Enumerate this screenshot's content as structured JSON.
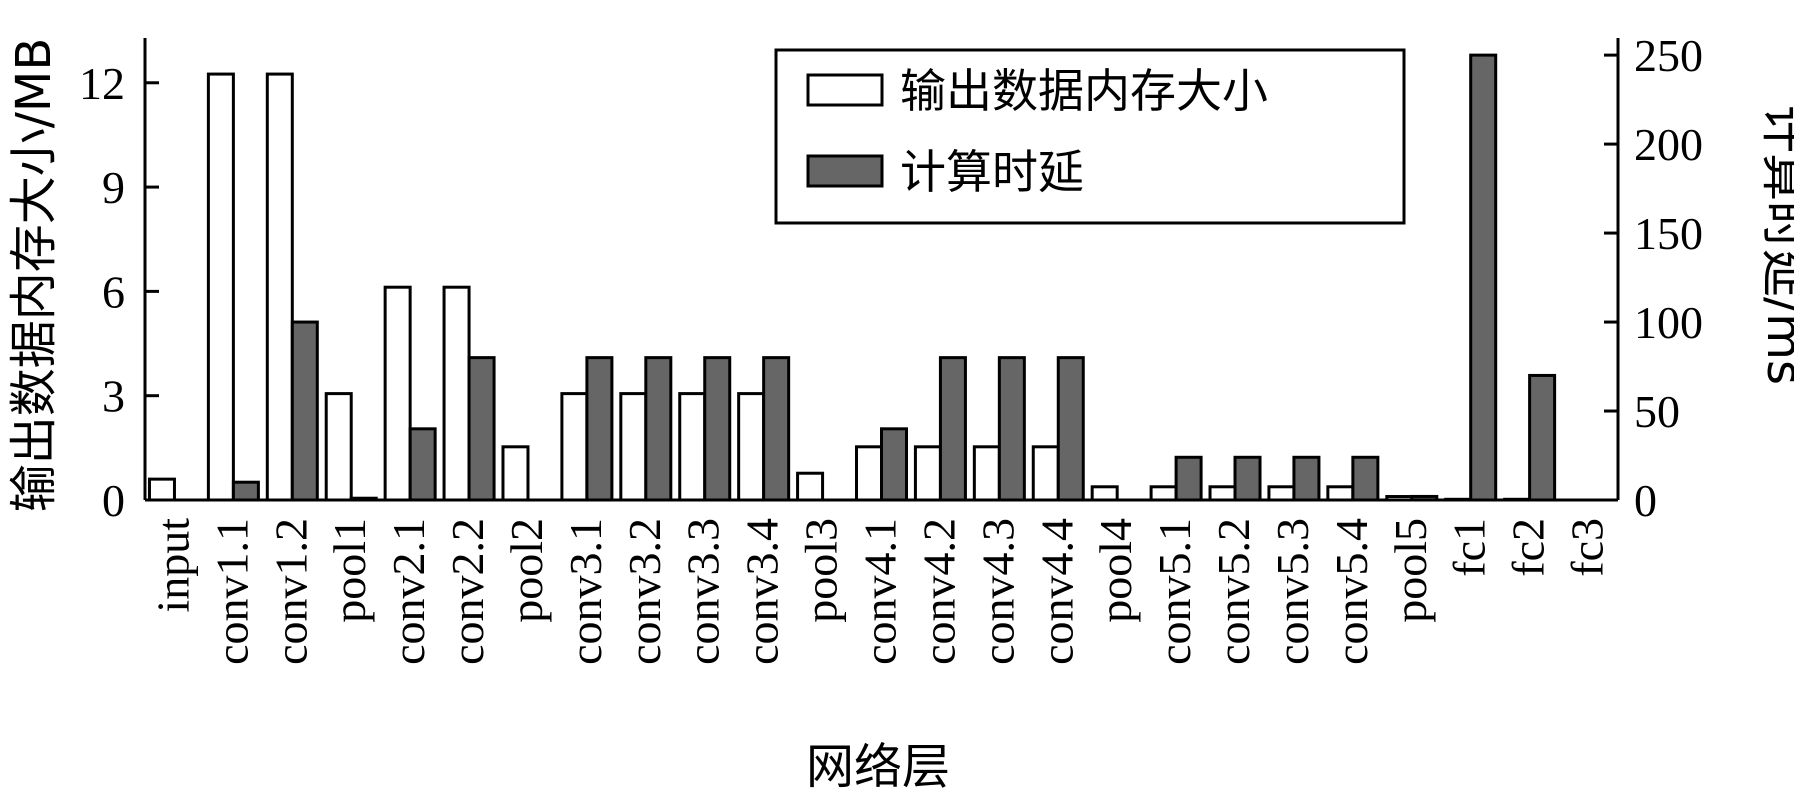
{
  "chart_data": {
    "type": "bar",
    "categories": [
      "input",
      "conv1.1",
      "conv1.2",
      "pool1",
      "conv2.1",
      "conv2.2",
      "pool2",
      "conv3.1",
      "conv3.2",
      "conv3.3",
      "conv3.4",
      "pool3",
      "conv4.1",
      "conv4.2",
      "conv4.3",
      "conv4.4",
      "pool4",
      "conv5.1",
      "conv5.2",
      "conv5.3",
      "conv5.4",
      "pool5",
      "fc1",
      "fc2",
      "fc3"
    ],
    "series": [
      {
        "name": "输出数据内存大小",
        "axis": "left",
        "fill": "#ffffff",
        "values": [
          0.6,
          12.25,
          12.25,
          3.06,
          6.12,
          6.12,
          1.53,
          3.06,
          3.06,
          3.06,
          3.06,
          0.77,
          1.53,
          1.53,
          1.53,
          1.53,
          0.38,
          0.38,
          0.38,
          0.38,
          0.38,
          0.1,
          0.02,
          0.02,
          0.0
        ]
      },
      {
        "name": "计算时延",
        "axis": "right",
        "fill": "#666666",
        "values": [
          0,
          10,
          100,
          1,
          40,
          80,
          0,
          80,
          80,
          80,
          80,
          0,
          40,
          80,
          80,
          80,
          0,
          24,
          24,
          24,
          24,
          2,
          250,
          70,
          0
        ]
      }
    ],
    "xlabel": "网络层",
    "ylabel_left": "输出数据内存大小/MB",
    "ylabel_right": "计算时延/ms",
    "ylim_left": [
      0,
      13
    ],
    "yticks_left": [
      0,
      3,
      6,
      9,
      12
    ],
    "ylim_right": [
      0,
      254
    ],
    "yticks_right": [
      0,
      50,
      100,
      150,
      200,
      250
    ],
    "legend_position": "top-right",
    "grid": false
  }
}
